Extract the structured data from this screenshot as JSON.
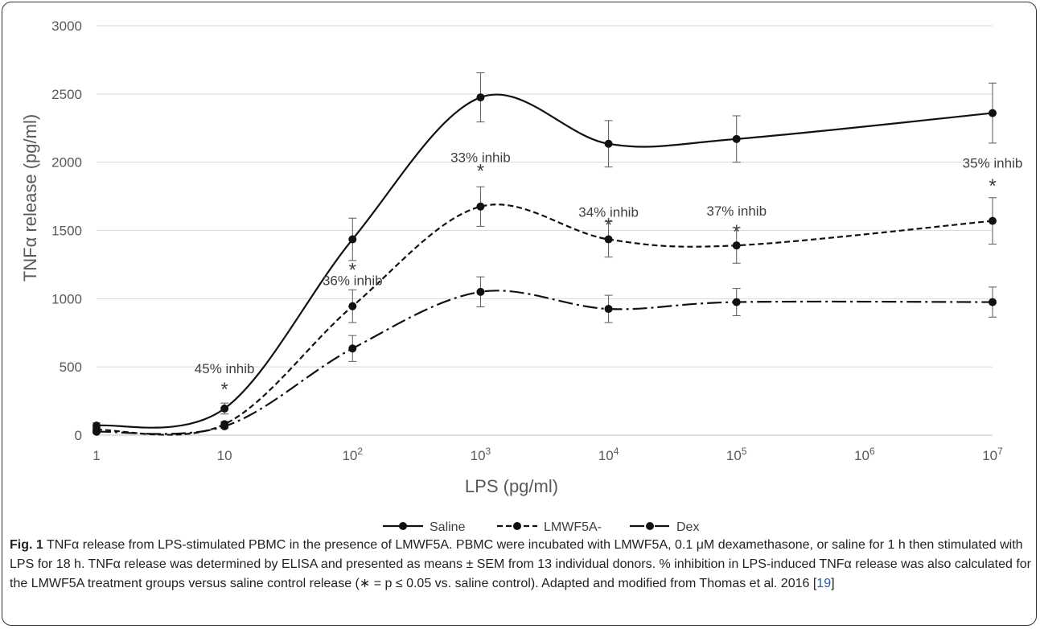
{
  "chart_data": {
    "type": "line",
    "x_scale": "log",
    "x": [
      1,
      10,
      100,
      1000,
      10000,
      100000,
      10000000
    ],
    "x_tick_values": [
      1,
      10,
      100,
      1000,
      10000,
      100000,
      1000000,
      10000000
    ],
    "x_tick_base": [
      "1",
      "10",
      "10",
      "10",
      "10",
      "10",
      "10",
      "10"
    ],
    "x_tick_exp": [
      "",
      "",
      "2",
      "3",
      "4",
      "5",
      "6",
      "7"
    ],
    "xlabel": "LPS (pg/ml)",
    "ylabel": "TNFα release (pg/ml)",
    "ylim": [
      0,
      3000
    ],
    "y_ticks": [
      "0",
      "500",
      "1000",
      "1500",
      "2000",
      "2500",
      "3000"
    ],
    "grid": "horizontal",
    "legend_position": "bottom",
    "series": [
      {
        "name": "Saline",
        "values": [
          70,
          195,
          1435,
          2475,
          2135,
          2170,
          2360
        ],
        "errors": [
          20,
          40,
          155,
          180,
          170,
          170,
          220
        ],
        "dash": "solid"
      },
      {
        "name": "LMWF5A-",
        "values": [
          40,
          80,
          945,
          1675,
          1435,
          1390,
          1570
        ],
        "errors": [
          15,
          20,
          120,
          145,
          130,
          130,
          170
        ],
        "dash": "dashed"
      },
      {
        "name": "Dex",
        "values": [
          25,
          65,
          635,
          1050,
          925,
          975,
          975
        ],
        "errors": [
          10,
          15,
          95,
          110,
          100,
          100,
          110
        ],
        "dash": "dashdot"
      }
    ],
    "annotations": [
      {
        "text": "45% inhib",
        "x": 10,
        "y": 455
      },
      {
        "text": "36% inhib",
        "x": 100,
        "y": 1100
      },
      {
        "text": "33% inhib",
        "x": 1000,
        "y": 2000
      },
      {
        "text": "34% inhib",
        "x": 10000,
        "y": 1600
      },
      {
        "text": "37% inhib",
        "x": 100000,
        "y": 1610
      },
      {
        "text": "35% inhib",
        "x": 10000000,
        "y": 1960
      }
    ],
    "significance_markers": [
      {
        "text": "*",
        "x": 10,
        "y": 290
      },
      {
        "text": "*",
        "x": 100,
        "y": 1165
      },
      {
        "text": "*",
        "x": 1000,
        "y": 1890
      },
      {
        "text": "*",
        "x": 10000,
        "y": 1495
      },
      {
        "text": "*",
        "x": 100000,
        "y": 1445
      },
      {
        "text": "*",
        "x": 10000000,
        "y": 1780
      }
    ]
  },
  "caption": {
    "label": "Fig. 1",
    "text": " TNFα release from LPS-stimulated PBMC in the presence of LMWF5A. PBMC were incubated with LMWF5A, 0.1 μM dexamethasone, or saline for 1 h then stimulated with LPS for 18 h. TNFα release was determined by ELISA and presented as means ± SEM from 13 individual donors. % inhibition in LPS-induced TNFα release was also calculated for the LMWF5A treatment groups versus saline control release (∗ = p ≤ 0.05 vs. saline control). Adapted and modified from Thomas et al. 2016 [",
    "ref": "19",
    "end": "]"
  },
  "colors": {
    "series": "#111111",
    "grid": "#d9d9d9",
    "axis_text": "#595959",
    "annotation": "#404040"
  }
}
